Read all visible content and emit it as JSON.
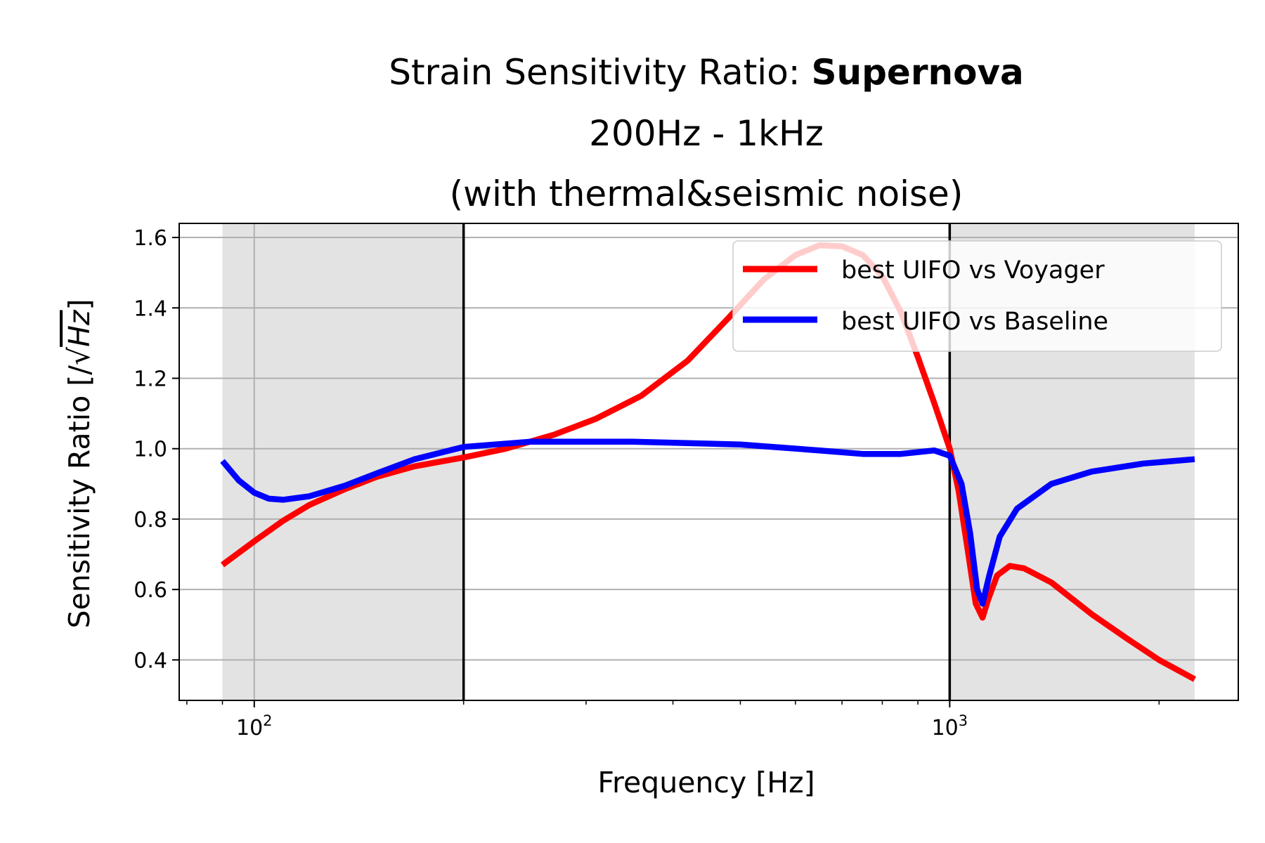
{
  "chart_data": {
    "type": "line",
    "title": {
      "line1_prefix": "Strain Sensitivity Ratio: ",
      "line1_bold": "Supernova",
      "line2": "200Hz - 1kHz",
      "line3": "(with thermal&seismic noise)"
    },
    "xlabel": "Frequency [Hz]",
    "ylabel": "Sensitivity Ratio [/√Hz]",
    "ylabel_parts": {
      "prefix": "Sensitivity Ratio [/",
      "sqrt_sign": "√",
      "radicand": "Hz",
      "suffix": "]"
    },
    "x_scale": "log",
    "xlim": [
      78,
      2600
    ],
    "ylim": [
      0.285,
      1.64
    ],
    "x_ticks": [
      {
        "value": 100,
        "base": "10",
        "exp": "2"
      },
      {
        "value": 1000,
        "base": "10",
        "exp": "3"
      }
    ],
    "y_ticks": [
      0.4,
      0.6,
      0.8,
      1.0,
      1.2,
      1.4,
      1.6
    ],
    "y_tick_labels": [
      "0.4",
      "0.6",
      "0.8",
      "1.0",
      "1.2",
      "1.4",
      "1.6"
    ],
    "grid": true,
    "shaded_regions": [
      {
        "x0": 90,
        "x1": 200,
        "color": "#e3e3e3"
      },
      {
        "x0": 1000,
        "x1": 2250,
        "color": "#e3e3e3"
      }
    ],
    "vertical_lines": [
      200,
      1000
    ],
    "legend_position": "upper right",
    "series": [
      {
        "name": "best UIFO vs Voyager",
        "color": "#ff0000",
        "points": [
          [
            90,
            0.67
          ],
          [
            100,
            0.737
          ],
          [
            110,
            0.795
          ],
          [
            120,
            0.84
          ],
          [
            135,
            0.885
          ],
          [
            150,
            0.92
          ],
          [
            170,
            0.95
          ],
          [
            200,
            0.975
          ],
          [
            230,
            1.0
          ],
          [
            270,
            1.04
          ],
          [
            310,
            1.085
          ],
          [
            360,
            1.15
          ],
          [
            420,
            1.25
          ],
          [
            480,
            1.37
          ],
          [
            540,
            1.48
          ],
          [
            600,
            1.55
          ],
          [
            650,
            1.578
          ],
          [
            700,
            1.575
          ],
          [
            750,
            1.55
          ],
          [
            800,
            1.49
          ],
          [
            850,
            1.39
          ],
          [
            900,
            1.26
          ],
          [
            950,
            1.13
          ],
          [
            1000,
            1.0
          ],
          [
            1030,
            0.88
          ],
          [
            1060,
            0.72
          ],
          [
            1090,
            0.56
          ],
          [
            1115,
            0.52
          ],
          [
            1135,
            0.57
          ],
          [
            1170,
            0.64
          ],
          [
            1220,
            0.667
          ],
          [
            1280,
            0.66
          ],
          [
            1400,
            0.62
          ],
          [
            1600,
            0.53
          ],
          [
            1800,
            0.46
          ],
          [
            2000,
            0.4
          ],
          [
            2250,
            0.345
          ]
        ]
      },
      {
        "name": "best UIFO vs Baseline",
        "color": "#0000ff",
        "points": [
          [
            90,
            0.965
          ],
          [
            95,
            0.91
          ],
          [
            100,
            0.875
          ],
          [
            105,
            0.858
          ],
          [
            110,
            0.855
          ],
          [
            120,
            0.865
          ],
          [
            135,
            0.895
          ],
          [
            150,
            0.93
          ],
          [
            170,
            0.97
          ],
          [
            200,
            1.005
          ],
          [
            250,
            1.02
          ],
          [
            350,
            1.02
          ],
          [
            500,
            1.012
          ],
          [
            650,
            0.995
          ],
          [
            750,
            0.985
          ],
          [
            850,
            0.985
          ],
          [
            950,
            0.995
          ],
          [
            1000,
            0.98
          ],
          [
            1040,
            0.9
          ],
          [
            1070,
            0.76
          ],
          [
            1095,
            0.6
          ],
          [
            1115,
            0.56
          ],
          [
            1140,
            0.64
          ],
          [
            1180,
            0.75
          ],
          [
            1250,
            0.83
          ],
          [
            1400,
            0.9
          ],
          [
            1600,
            0.935
          ],
          [
            1900,
            0.958
          ],
          [
            2250,
            0.97
          ]
        ]
      }
    ]
  }
}
